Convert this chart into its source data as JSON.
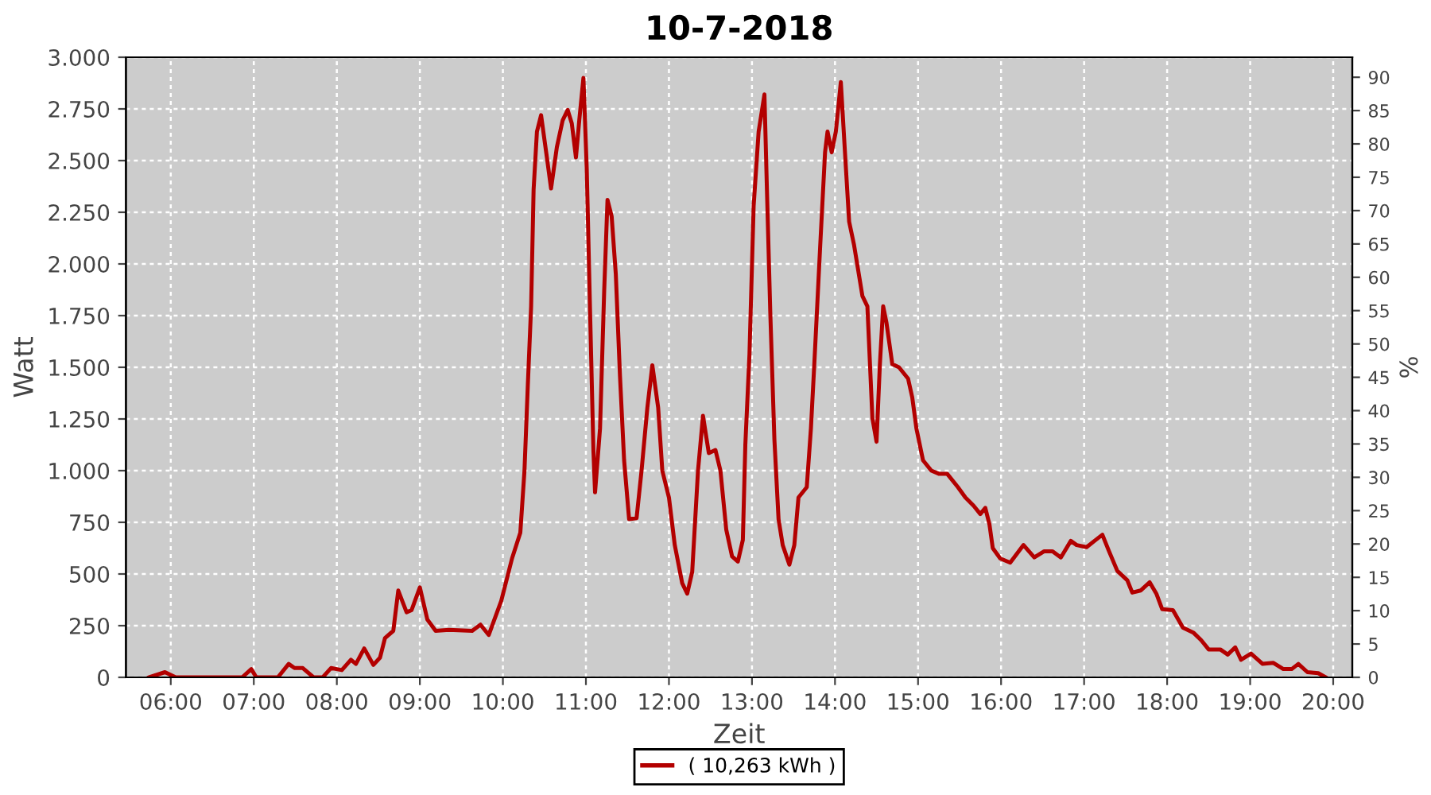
{
  "chart_data": {
    "type": "line",
    "title": "10-7-2018",
    "xlabel": "Zeit",
    "ylabel": "Watt",
    "y2label": "%",
    "xlim": [
      5.46,
      20.23
    ],
    "xticks": [
      {
        "value": 6,
        "label": "06:00"
      },
      {
        "value": 7,
        "label": "07:00"
      },
      {
        "value": 8,
        "label": "08:00"
      },
      {
        "value": 9,
        "label": "09:00"
      },
      {
        "value": 10,
        "label": "10:00"
      },
      {
        "value": 11,
        "label": "11:00"
      },
      {
        "value": 12,
        "label": "12:00"
      },
      {
        "value": 13,
        "label": "13:00"
      },
      {
        "value": 14,
        "label": "14:00"
      },
      {
        "value": 15,
        "label": "15:00"
      },
      {
        "value": 16,
        "label": "16:00"
      },
      {
        "value": 17,
        "label": "17:00"
      },
      {
        "value": 18,
        "label": "18:00"
      },
      {
        "value": 19,
        "label": "19:00"
      },
      {
        "value": 20,
        "label": "20:00"
      }
    ],
    "ylim": [
      0,
      3000
    ],
    "yticks": [
      0,
      250,
      500,
      750,
      {
        "value": 1000,
        "label": "1.000"
      },
      {
        "value": 1250,
        "label": "1.250"
      },
      {
        "value": 1500,
        "label": "1.500"
      },
      {
        "value": 1750,
        "label": "1.750"
      },
      {
        "value": 2000,
        "label": "2.000"
      },
      {
        "value": 2250,
        "label": "2.250"
      },
      {
        "value": 2500,
        "label": "2.500"
      },
      {
        "value": 2750,
        "label": "2.750"
      },
      {
        "value": 3000,
        "label": "3.000"
      }
    ],
    "y2lim": [
      0,
      93
    ],
    "y2ticks": [
      0,
      5,
      10,
      15,
      20,
      25,
      30,
      35,
      40,
      45,
      50,
      55,
      60,
      65,
      70,
      75,
      80,
      85,
      90
    ],
    "grid": true,
    "legend": "bottom",
    "series": [
      {
        "name": "( 10,263 kWh )",
        "color": "#b30000",
        "x": [
          5.74,
          5.93,
          6.06,
          6.86,
          6.97,
          7.03,
          7.29,
          7.42,
          7.49,
          7.59,
          7.72,
          7.83,
          7.93,
          8.06,
          8.17,
          8.23,
          8.33,
          8.44,
          8.52,
          8.58,
          8.68,
          8.74,
          8.84,
          8.9,
          9.0,
          9.09,
          9.19,
          9.35,
          9.63,
          9.73,
          9.83,
          9.98,
          10.11,
          10.21,
          10.26,
          10.3,
          10.34,
          10.37,
          10.41,
          10.46,
          10.53,
          10.58,
          10.65,
          10.72,
          10.78,
          10.83,
          10.88,
          10.92,
          10.97,
          11.01,
          11.05,
          11.09,
          11.11,
          11.17,
          11.22,
          11.26,
          11.31,
          11.36,
          11.41,
          11.46,
          11.52,
          11.61,
          11.67,
          11.74,
          11.8,
          11.87,
          11.92,
          12.0,
          12.07,
          12.16,
          12.22,
          12.28,
          12.35,
          12.41,
          12.48,
          12.56,
          12.62,
          12.69,
          12.76,
          12.83,
          12.89,
          12.92,
          12.97,
          13.02,
          13.08,
          13.15,
          13.18,
          13.22,
          13.27,
          13.32,
          13.37,
          13.45,
          13.51,
          13.56,
          13.66,
          13.71,
          13.75,
          13.82,
          13.88,
          13.91,
          13.96,
          14.01,
          14.07,
          14.12,
          14.17,
          14.23,
          14.33,
          14.39,
          14.45,
          14.5,
          14.54,
          14.58,
          14.62,
          14.69,
          14.77,
          14.88,
          14.93,
          14.98,
          15.06,
          15.16,
          15.25,
          15.35,
          15.48,
          15.57,
          15.67,
          15.75,
          15.81,
          15.86,
          15.9,
          15.99,
          16.11,
          16.27,
          16.4,
          16.52,
          16.62,
          16.72,
          16.84,
          16.91,
          17.03,
          17.14,
          17.22,
          17.3,
          17.4,
          17.52,
          17.58,
          17.68,
          17.79,
          17.87,
          17.94,
          18.07,
          18.19,
          18.32,
          18.41,
          18.5,
          18.64,
          18.73,
          18.82,
          18.89,
          19.01,
          19.15,
          19.28,
          19.4,
          19.5,
          19.58,
          19.69,
          19.82,
          19.91
        ],
        "values": [
          0,
          25,
          0,
          0,
          40,
          0,
          0,
          65,
          45,
          45,
          0,
          0,
          45,
          35,
          85,
          65,
          140,
          60,
          95,
          190,
          225,
          420,
          315,
          325,
          435,
          280,
          225,
          230,
          225,
          255,
          205,
          370,
          575,
          700,
          1000,
          1410,
          1795,
          2360,
          2640,
          2720,
          2515,
          2365,
          2565,
          2695,
          2745,
          2680,
          2515,
          2695,
          2900,
          2460,
          1770,
          1100,
          895,
          1205,
          1870,
          2310,
          2230,
          1950,
          1460,
          1050,
          765,
          770,
          1000,
          1305,
          1510,
          1305,
          1000,
          870,
          640,
          455,
          405,
          510,
          1000,
          1265,
          1085,
          1100,
          1000,
          715,
          585,
          560,
          665,
          1125,
          1565,
          2280,
          2640,
          2820,
          2360,
          1770,
          1150,
          765,
          640,
          545,
          640,
          870,
          920,
          1205,
          1510,
          2075,
          2540,
          2640,
          2540,
          2640,
          2880,
          2540,
          2205,
          2090,
          1845,
          1795,
          1255,
          1140,
          1510,
          1795,
          1715,
          1515,
          1500,
          1445,
          1355,
          1205,
          1050,
          1000,
          985,
          985,
          920,
          870,
          830,
          790,
          820,
          740,
          625,
          575,
          555,
          640,
          580,
          610,
          610,
          580,
          660,
          640,
          630,
          665,
          690,
          610,
          515,
          470,
          410,
          420,
          460,
          405,
          330,
          325,
          240,
          215,
          180,
          135,
          135,
          110,
          145,
          85,
          115,
          65,
          70,
          40,
          40,
          65,
          25,
          20,
          0
        ]
      }
    ]
  }
}
